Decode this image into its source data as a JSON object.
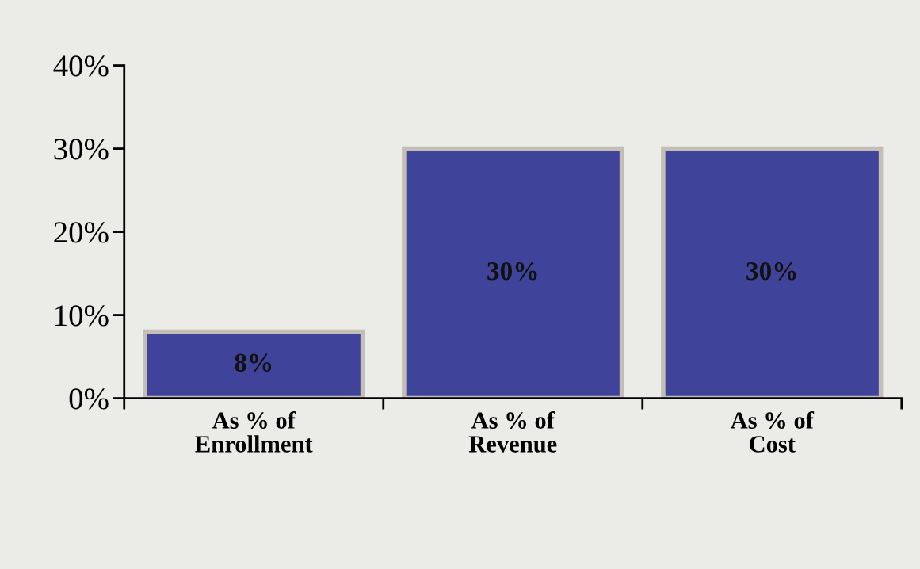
{
  "chart_data": {
    "type": "bar",
    "categories": [
      "As % of\nEnrollment",
      "As % of\nRevenue",
      "As % of\nCost"
    ],
    "values": [
      8,
      30,
      30
    ],
    "value_labels": [
      "8%",
      "30%",
      "30%"
    ],
    "color": "#3f449a",
    "ylim": [
      0,
      40
    ],
    "yticks": [
      {
        "value": 0,
        "label": "0%"
      },
      {
        "value": 10,
        "label": "10%"
      },
      {
        "value": 20,
        "label": "20%"
      },
      {
        "value": 30,
        "label": "30%"
      },
      {
        "value": 40,
        "label": "40%"
      }
    ],
    "grid": false
  }
}
